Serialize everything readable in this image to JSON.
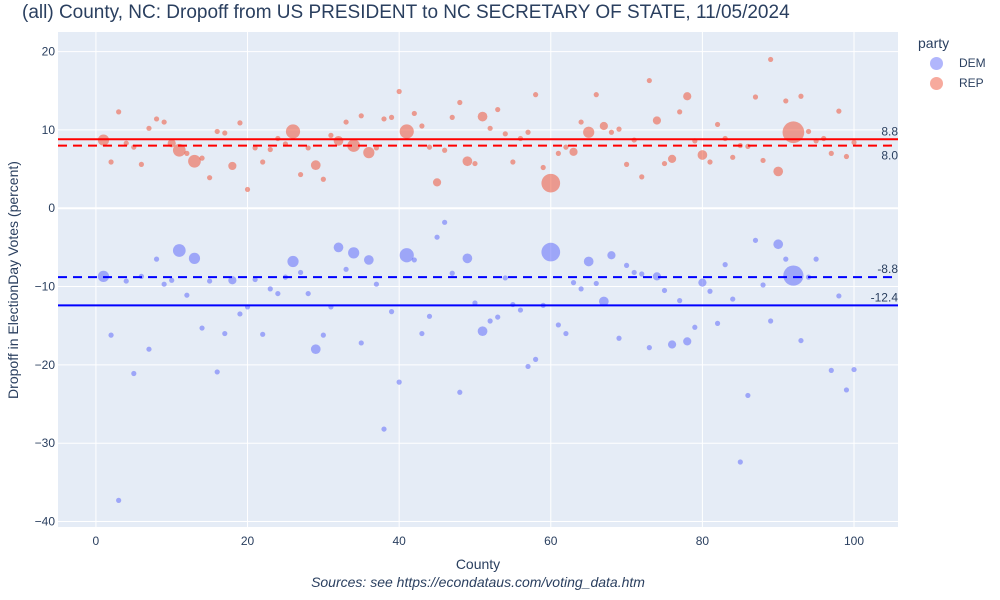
{
  "chart_data": {
    "type": "scatter",
    "title": "(all) County, NC: Dropoff from US PRESIDENT to NC SECRETARY OF STATE, 11/05/2024",
    "xlabel": "County",
    "ylabel": "Dropoff in ElectionDay Votes (percent)",
    "source": "Sources: see https://econdataus.com/voting_data.htm",
    "xlim": [
      -5,
      105.8
    ],
    "ylim": [
      -40.7,
      22.5
    ],
    "xticks": [
      0,
      20,
      40,
      60,
      80,
      100
    ],
    "xtick_labels": [
      "0",
      "20",
      "40",
      "60",
      "80",
      "100"
    ],
    "yticks": [
      20,
      10,
      0,
      -10,
      -20,
      -30,
      -40
    ],
    "ytick_labels": [
      "20",
      "10",
      "0",
      "−10",
      "−20",
      "−30",
      "−40"
    ],
    "grid": true,
    "legend": {
      "title": "party",
      "placement": "top-right outside"
    },
    "series": [
      {
        "name": "DEM",
        "color": "#636efa",
        "x": [
          1,
          2,
          3,
          4,
          5,
          6,
          7,
          8,
          9,
          10,
          11,
          12,
          13,
          14,
          15,
          16,
          17,
          18,
          19,
          20,
          21,
          22,
          23,
          24,
          25,
          26,
          27,
          28,
          29,
          30,
          31,
          32,
          33,
          34,
          35,
          36,
          37,
          38,
          39,
          40,
          41,
          42,
          43,
          44,
          45,
          46,
          47,
          48,
          49,
          50,
          51,
          52,
          53,
          54,
          55,
          56,
          57,
          58,
          59,
          60,
          61,
          62,
          63,
          64,
          65,
          66,
          67,
          68,
          69,
          70,
          71,
          72,
          73,
          74,
          75,
          76,
          77,
          78,
          79,
          80,
          81,
          82,
          83,
          84,
          85,
          86,
          87,
          88,
          89,
          90,
          91,
          92,
          93,
          94,
          95,
          97,
          98,
          99,
          100
        ],
        "y": [
          -8.7,
          -16.2,
          -37.3,
          -9.3,
          -21.1,
          -8.7,
          -18.0,
          -6.5,
          -9.7,
          -9.2,
          -5.4,
          -11.1,
          -6.4,
          -15.3,
          -9.3,
          -20.9,
          -16.0,
          -9.2,
          -13.5,
          -12.6,
          -9.1,
          -16.1,
          -10.3,
          -10.9,
          -8.8,
          -6.8,
          -8.2,
          -10.9,
          -18.0,
          -16.2,
          -12.6,
          -5.0,
          -7.8,
          -5.7,
          -17.2,
          -6.6,
          -9.7,
          -28.2,
          -13.2,
          -22.2,
          -6.0,
          -6.6,
          -16.0,
          -13.8,
          -3.7,
          -1.8,
          -8.3,
          -23.5,
          -6.4,
          -12.1,
          -15.7,
          -14.4,
          -13.9,
          -8.9,
          -12.3,
          -13.0,
          -20.2,
          -19.3,
          -12.4,
          -5.6,
          -14.9,
          -16.0,
          -9.5,
          -10.3,
          -6.8,
          -9.6,
          -11.9,
          -6.0,
          -16.6,
          -7.3,
          -8.2,
          -8.4,
          -17.8,
          -8.7,
          -10.5,
          -17.4,
          -11.8,
          -17.0,
          -15.2,
          -9.5,
          -10.6,
          -14.7,
          -7.2,
          -11.6,
          -32.4,
          -23.9,
          -4.1,
          -9.8,
          -14.4,
          -4.6,
          -6.5,
          -8.6,
          -16.9,
          -8.8,
          -6.5,
          -20.7,
          -11.2,
          -23.2,
          -20.6
        ],
        "weight": [
          4,
          1,
          1,
          1,
          1,
          1,
          1,
          1,
          1,
          1,
          5,
          1,
          4,
          1,
          1,
          1,
          1,
          2,
          1,
          1,
          1,
          1,
          1,
          1,
          1,
          4,
          1,
          1,
          3,
          1,
          1,
          3,
          1,
          4,
          1,
          3,
          1,
          1,
          1,
          1,
          6,
          1,
          1,
          1,
          1,
          1,
          1,
          1,
          3,
          1,
          3,
          1,
          1,
          1,
          1,
          1,
          1,
          1,
          1,
          9,
          1,
          1,
          1,
          1,
          3,
          1,
          3,
          2,
          1,
          1,
          1,
          1,
          1,
          2,
          1,
          2,
          1,
          2,
          1,
          2,
          1,
          1,
          1,
          1,
          1,
          1,
          1,
          1,
          1,
          3,
          1,
          10,
          1,
          1,
          1,
          1,
          1,
          1,
          1
        ]
      },
      {
        "name": "REP",
        "color": "#ef553b",
        "x": [
          1,
          2,
          3,
          4,
          5,
          6,
          7,
          8,
          9,
          10,
          11,
          12,
          13,
          14,
          15,
          16,
          17,
          18,
          19,
          20,
          21,
          22,
          23,
          24,
          25,
          26,
          27,
          28,
          29,
          30,
          31,
          32,
          33,
          34,
          35,
          36,
          37,
          38,
          39,
          40,
          41,
          42,
          43,
          44,
          45,
          46,
          47,
          48,
          49,
          50,
          51,
          52,
          53,
          54,
          55,
          56,
          57,
          58,
          59,
          60,
          61,
          62,
          63,
          64,
          65,
          66,
          67,
          68,
          69,
          70,
          71,
          72,
          73,
          74,
          75,
          76,
          77,
          78,
          79,
          80,
          81,
          82,
          83,
          84,
          85,
          86,
          87,
          88,
          89,
          90,
          91,
          92,
          93,
          94,
          95,
          96,
          97,
          98,
          99,
          100
        ],
        "y": [
          8.7,
          5.9,
          12.3,
          8.3,
          7.8,
          5.6,
          10.2,
          11.4,
          11.0,
          8.3,
          7.4,
          7.0,
          6.0,
          6.4,
          3.9,
          9.8,
          9.6,
          5.4,
          10.9,
          2.4,
          7.7,
          5.9,
          7.5,
          8.9,
          8.2,
          9.8,
          4.3,
          7.7,
          5.5,
          3.7,
          9.3,
          8.6,
          11.0,
          8.0,
          11.8,
          7.1,
          7.7,
          11.4,
          11.6,
          14.9,
          9.8,
          12.1,
          10.5,
          7.8,
          3.3,
          7.4,
          11.6,
          13.5,
          6.0,
          5.7,
          11.7,
          10.2,
          12.6,
          9.5,
          5.9,
          8.9,
          9.7,
          14.5,
          5.2,
          3.2,
          7.0,
          7.8,
          7.2,
          11.0,
          9.7,
          14.5,
          10.5,
          9.7,
          10.1,
          5.6,
          8.7,
          4.0,
          16.3,
          11.2,
          5.7,
          6.3,
          12.3,
          14.3,
          8.6,
          6.8,
          5.9,
          10.7,
          8.9,
          6.5,
          8.0,
          7.9,
          14.2,
          6.1,
          19.0,
          4.7,
          13.7,
          9.7,
          14.3,
          9.8,
          8.6,
          8.9,
          7.0,
          12.4,
          6.6,
          8.4
        ],
        "weight": [
          4,
          1,
          1,
          1,
          1,
          1,
          1,
          1,
          1,
          2,
          5,
          1,
          5,
          1,
          1,
          1,
          1,
          2,
          1,
          1,
          1,
          1,
          1,
          1,
          1,
          6,
          1,
          1,
          3,
          1,
          1,
          3,
          1,
          5,
          1,
          4,
          1,
          1,
          1,
          1,
          6,
          1,
          1,
          1,
          2,
          1,
          1,
          1,
          3,
          1,
          3,
          1,
          1,
          1,
          1,
          1,
          1,
          1,
          1,
          9,
          1,
          1,
          2,
          1,
          4,
          1,
          2,
          1,
          1,
          1,
          1,
          1,
          1,
          2,
          1,
          2,
          1,
          2,
          1,
          3,
          1,
          1,
          1,
          1,
          1,
          1,
          1,
          1,
          1,
          3,
          1,
          11,
          1,
          1,
          1,
          1,
          1,
          1,
          1,
          1
        ]
      }
    ],
    "reference_lines": [
      {
        "party": "REP",
        "value": 8.8,
        "label": "8.8",
        "style": "solid",
        "color": "#ff0000"
      },
      {
        "party": "REP",
        "value": 8.0,
        "label": "8.0",
        "style": "dash",
        "color": "#ff0000"
      },
      {
        "party": "DEM",
        "value": -8.8,
        "label": "-8.8",
        "style": "dash",
        "color": "#0000ff"
      },
      {
        "party": "DEM",
        "value": -12.4,
        "label": "-12.4",
        "style": "solid",
        "color": "#0000ff"
      }
    ]
  }
}
